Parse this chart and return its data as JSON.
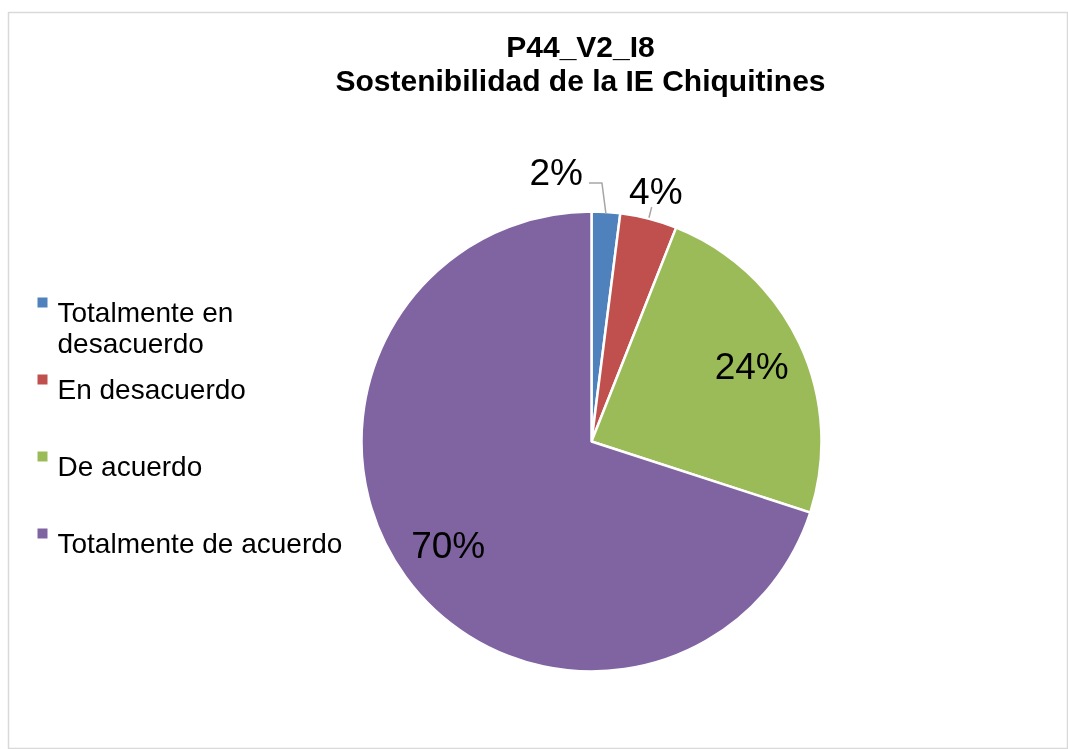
{
  "chart_data": {
    "type": "pie",
    "title": "P44_V2_I8\nSostenibilidad de la IE Chiquitines",
    "categories": [
      "Totalmente en desacuerdo",
      "En desacuerdo",
      "De acuerdo",
      "Totalmente de acuerdo"
    ],
    "values": [
      2,
      4,
      24,
      70
    ],
    "colors": [
      "#4f81bd",
      "#c0504d",
      "#9bbb59",
      "#8064a2"
    ],
    "value_labels": [
      "2%",
      "4%",
      "24%",
      "70%"
    ],
    "legend": "left"
  }
}
